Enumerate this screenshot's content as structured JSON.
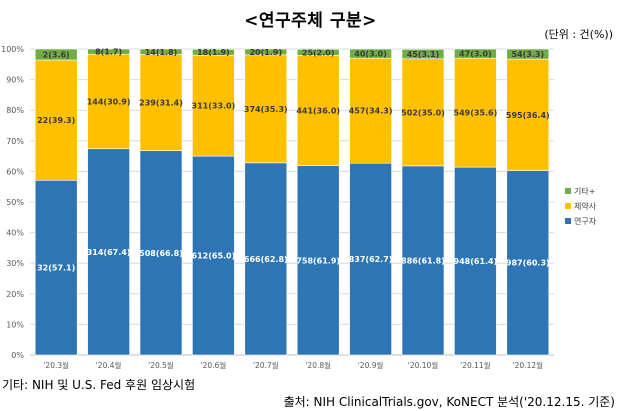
{
  "title": "<연구주체 구분>",
  "unit_note": "(단위 : 건(%))",
  "footnote": "기타: NIH 및 U.S. Fed 후원 임상시험",
  "source": "출처: NIH ClinicalTrials.gov, KoNECT 분석('20.12.15. 기준)",
  "colors": {
    "researcher": "#2e75b6",
    "pharma": "#ffc000",
    "other": "#70ad47"
  },
  "chart_data": {
    "type": "bar",
    "stacked": true,
    "percent": true,
    "categories": [
      "'20.3월",
      "'20.4월",
      "'20.5월",
      "'20.6월",
      "'20.7월",
      "'20.8월",
      "'20.9월",
      "'20.10월",
      "'20.11월",
      "'20.12월"
    ],
    "y_ticks": [
      "0%",
      "10%",
      "20%",
      "30%",
      "40%",
      "50%",
      "60%",
      "70%",
      "80%",
      "90%",
      "100%"
    ],
    "ylim": [
      0,
      100
    ],
    "legend_position": "right",
    "series": [
      {
        "name": "연구자",
        "color": "#2e75b6",
        "values": [
          57.1,
          67.4,
          66.8,
          65.0,
          62.8,
          61.9,
          62.7,
          61.8,
          61.4,
          60.3
        ],
        "labels": [
          "32(57.1)",
          "314(67.4)",
          "508(66.8)",
          "612(65.0)",
          "666(62.8)",
          "758(61.9)",
          "837(62.7)",
          "886(61.8)",
          "948(61.4)",
          "987(60.3)"
        ]
      },
      {
        "name": "제약사",
        "color": "#ffc000",
        "values": [
          39.3,
          30.9,
          31.4,
          33.0,
          35.3,
          36.0,
          34.3,
          35.0,
          35.6,
          36.4
        ],
        "labels": [
          "22(39.3)",
          "144(30.9)",
          "239(31.4)",
          "311(33.0)",
          "374(35.3)",
          "441(36.0)",
          "457(34.3)",
          "502(35.0)",
          "549(35.6)",
          "595(36.4)"
        ]
      },
      {
        "name": "기타+",
        "color": "#70ad47",
        "values": [
          3.6,
          1.7,
          1.8,
          1.9,
          1.9,
          2.0,
          3.0,
          3.1,
          3.0,
          3.3
        ],
        "labels": [
          "2(3.6)",
          "8(1.7)",
          "14(1.8)",
          "18(1.9)",
          "20(1.9)",
          "25(2.0)",
          "40(3.0)",
          "45(3.1)",
          "47(3.0)",
          "54(3.3)"
        ]
      }
    ]
  }
}
